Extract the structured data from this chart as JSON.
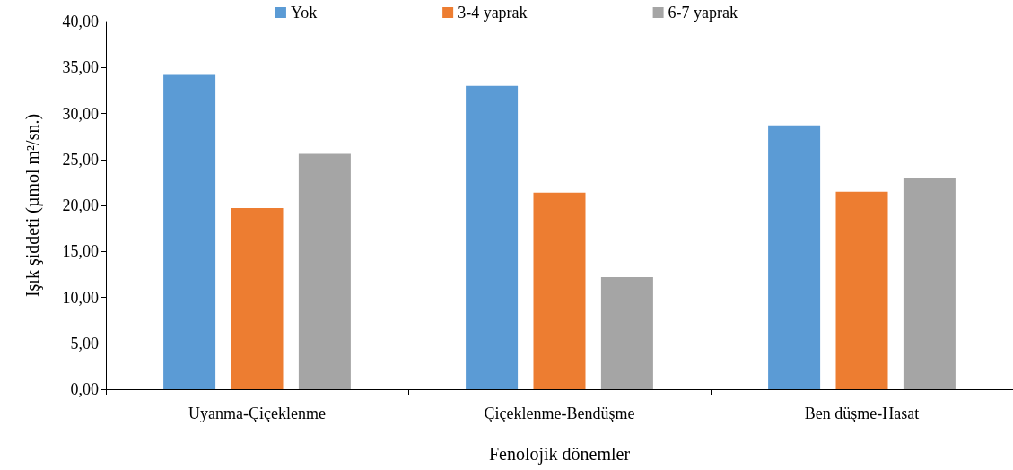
{
  "chart_data": {
    "type": "bar",
    "xlabel": "Fenolojik dönemler",
    "ylabel": "Işık şiddeti (µmol m²/sn.)",
    "categories": [
      "Uyanma-Çiçeklenme",
      "Çiçeklenme-Bendüşme",
      "Ben düşme-Hasat"
    ],
    "series": [
      {
        "name": "Yok",
        "color": "#5b9bd5",
        "values": [
          34.2,
          33.0,
          28.7
        ]
      },
      {
        "name": "3-4 yaprak",
        "color": "#ed7d31",
        "values": [
          19.7,
          21.4,
          21.5
        ]
      },
      {
        "name": "6-7 yaprak",
        "color": "#a5a5a5",
        "values": [
          25.6,
          12.2,
          23.0
        ]
      }
    ],
    "ylim": [
      0,
      40
    ],
    "yticks": [
      {
        "value": 0,
        "label": "0,00"
      },
      {
        "value": 5,
        "label": "5,00"
      },
      {
        "value": 10,
        "label": "10,00"
      },
      {
        "value": 15,
        "label": "15,00"
      },
      {
        "value": 20,
        "label": "20,00"
      },
      {
        "value": 25,
        "label": "25,00"
      },
      {
        "value": 30,
        "label": "30,00"
      },
      {
        "value": 35,
        "label": "35,00"
      },
      {
        "value": 40,
        "label": "40,00"
      }
    ],
    "grid": false,
    "legend": "top"
  }
}
